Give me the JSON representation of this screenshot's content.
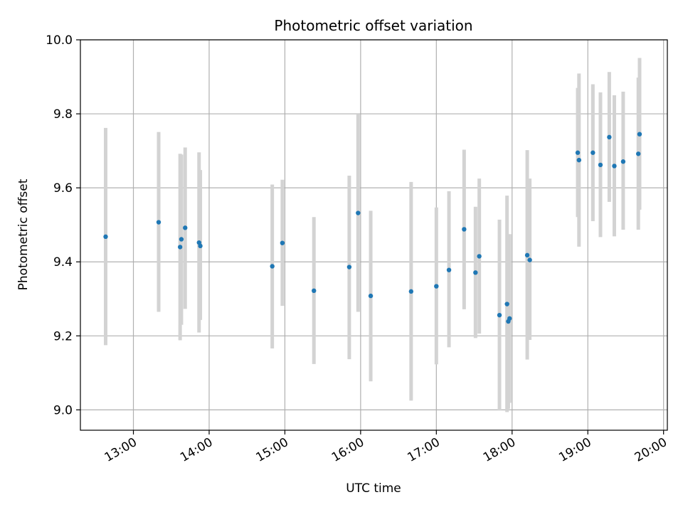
{
  "chart_data": {
    "type": "scatter",
    "title": "Photometric offset variation",
    "xlabel": "UTC time",
    "ylabel": "Photometric offset",
    "ylim": [
      8.945,
      10.0
    ],
    "xlim": [
      "12:18",
      "20:03"
    ],
    "grid": true,
    "x_tick_labels": [
      "13:00",
      "14:00",
      "15:00",
      "16:00",
      "17:00",
      "18:00",
      "19:00",
      "20:00"
    ],
    "y_tick_labels": [
      "9.0",
      "9.2",
      "9.4",
      "9.6",
      "9.8",
      "10.0"
    ],
    "y_ticks": [
      9.0,
      9.2,
      9.4,
      9.6,
      9.8,
      10.0
    ],
    "colors": {
      "point": "#1f77b4",
      "errorbar": "#d3d3d3",
      "grid": "#b0b0b0"
    },
    "points": [
      {
        "x": "12:38",
        "y": 9.468,
        "ylo": 9.175,
        "yhi": 9.762
      },
      {
        "x": "13:20",
        "y": 9.507,
        "ylo": 9.265,
        "yhi": 9.751
      },
      {
        "x": "13:37",
        "y": 9.44,
        "ylo": 9.188,
        "yhi": 9.692
      },
      {
        "x": "13:38",
        "y": 9.461,
        "ylo": 9.23,
        "yhi": 9.69
      },
      {
        "x": "13:41",
        "y": 9.492,
        "ylo": 9.273,
        "yhi": 9.709
      },
      {
        "x": "13:52",
        "y": 9.452,
        "ylo": 9.209,
        "yhi": 9.696
      },
      {
        "x": "13:53",
        "y": 9.443,
        "ylo": 9.243,
        "yhi": 9.648
      },
      {
        "x": "14:50",
        "y": 9.388,
        "ylo": 9.166,
        "yhi": 9.609
      },
      {
        "x": "14:58",
        "y": 9.451,
        "ylo": 9.281,
        "yhi": 9.622
      },
      {
        "x": "15:23",
        "y": 9.322,
        "ylo": 9.124,
        "yhi": 9.521
      },
      {
        "x": "15:51",
        "y": 9.386,
        "ylo": 9.137,
        "yhi": 9.633
      },
      {
        "x": "15:58",
        "y": 9.532,
        "ylo": 9.265,
        "yhi": 9.8
      },
      {
        "x": "16:08",
        "y": 9.308,
        "ylo": 9.077,
        "yhi": 9.538
      },
      {
        "x": "16:40",
        "y": 9.32,
        "ylo": 9.025,
        "yhi": 9.616
      },
      {
        "x": "17:00",
        "y": 9.334,
        "ylo": 9.123,
        "yhi": 9.547
      },
      {
        "x": "17:10",
        "y": 9.378,
        "ylo": 9.169,
        "yhi": 9.591
      },
      {
        "x": "17:22",
        "y": 9.488,
        "ylo": 9.272,
        "yhi": 9.703
      },
      {
        "x": "17:31",
        "y": 9.371,
        "ylo": 9.194,
        "yhi": 9.549
      },
      {
        "x": "17:34",
        "y": 9.415,
        "ylo": 9.206,
        "yhi": 9.625
      },
      {
        "x": "17:50",
        "y": 9.256,
        "ylo": 8.998,
        "yhi": 9.514
      },
      {
        "x": "17:56",
        "y": 9.286,
        "ylo": 8.994,
        "yhi": 9.579
      },
      {
        "x": "17:57",
        "y": 9.239,
        "ylo": 9.003,
        "yhi": 9.474
      },
      {
        "x": "17:58",
        "y": 9.247,
        "ylo": 9.019,
        "yhi": 9.475
      },
      {
        "x": "18:12",
        "y": 9.418,
        "ylo": 9.136,
        "yhi": 9.702
      },
      {
        "x": "18:14",
        "y": 9.405,
        "ylo": 9.189,
        "yhi": 9.625
      },
      {
        "x": "18:52",
        "y": 9.695,
        "ylo": 9.521,
        "yhi": 9.87
      },
      {
        "x": "18:53",
        "y": 9.675,
        "ylo": 9.441,
        "yhi": 9.909
      },
      {
        "x": "19:04",
        "y": 9.695,
        "ylo": 9.51,
        "yhi": 9.88
      },
      {
        "x": "19:10",
        "y": 9.662,
        "ylo": 9.467,
        "yhi": 9.858
      },
      {
        "x": "19:17",
        "y": 9.737,
        "ylo": 9.562,
        "yhi": 9.913
      },
      {
        "x": "19:21",
        "y": 9.659,
        "ylo": 9.469,
        "yhi": 9.85
      },
      {
        "x": "19:28",
        "y": 9.671,
        "ylo": 9.487,
        "yhi": 9.86
      },
      {
        "x": "19:40",
        "y": 9.692,
        "ylo": 9.487,
        "yhi": 9.898
      },
      {
        "x": "19:41",
        "y": 9.745,
        "ylo": 9.541,
        "yhi": 9.951
      }
    ]
  }
}
